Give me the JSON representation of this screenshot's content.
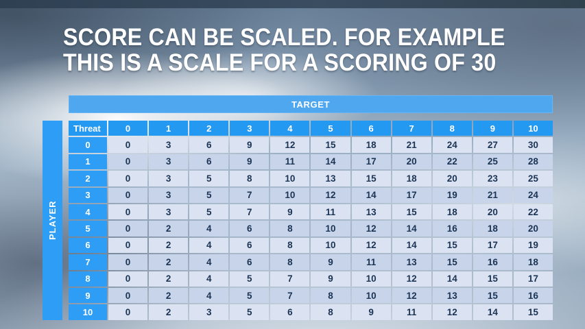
{
  "title": {
    "line1": "SCORE CAN BE SCALED. FOR EXAMPLE",
    "line2": "THIS IS A SCALE FOR A SCORING OF 30"
  },
  "table": {
    "target_label": "TARGET",
    "player_label": "PLAYER",
    "corner_label": "Threat",
    "columns": [
      "0",
      "1",
      "2",
      "3",
      "4",
      "5",
      "6",
      "7",
      "8",
      "9",
      "10"
    ],
    "row_headers": [
      "0",
      "1",
      "2",
      "3",
      "4",
      "5",
      "6",
      "7",
      "8",
      "9",
      "10"
    ],
    "rows": [
      [
        0,
        3,
        6,
        9,
        12,
        15,
        18,
        21,
        24,
        27,
        30
      ],
      [
        0,
        3,
        6,
        9,
        11,
        14,
        17,
        20,
        22,
        25,
        28
      ],
      [
        0,
        3,
        5,
        8,
        10,
        13,
        15,
        18,
        20,
        23,
        25
      ],
      [
        0,
        3,
        5,
        7,
        10,
        12,
        14,
        17,
        19,
        21,
        24
      ],
      [
        0,
        3,
        5,
        7,
        9,
        11,
        13,
        15,
        18,
        20,
        22
      ],
      [
        0,
        2,
        4,
        6,
        8,
        10,
        12,
        14,
        16,
        18,
        20
      ],
      [
        0,
        2,
        4,
        6,
        8,
        10,
        12,
        14,
        15,
        17,
        19
      ],
      [
        0,
        2,
        4,
        6,
        8,
        9,
        11,
        13,
        15,
        16,
        18
      ],
      [
        0,
        2,
        4,
        5,
        7,
        9,
        10,
        12,
        14,
        15,
        17
      ],
      [
        0,
        2,
        4,
        5,
        7,
        8,
        10,
        12,
        13,
        15,
        16
      ],
      [
        0,
        2,
        3,
        5,
        6,
        8,
        9,
        11,
        12,
        14,
        15
      ]
    ]
  },
  "colors": {
    "header_blue": "#2499f2",
    "row_header_blue": "#2e9df5",
    "target_bar_blue": "#4fa7f0",
    "band_light": "#dbe3f2",
    "band_dark": "#c7d4ea",
    "cell_text": "#1b3353",
    "title_text": "#ffffff"
  }
}
